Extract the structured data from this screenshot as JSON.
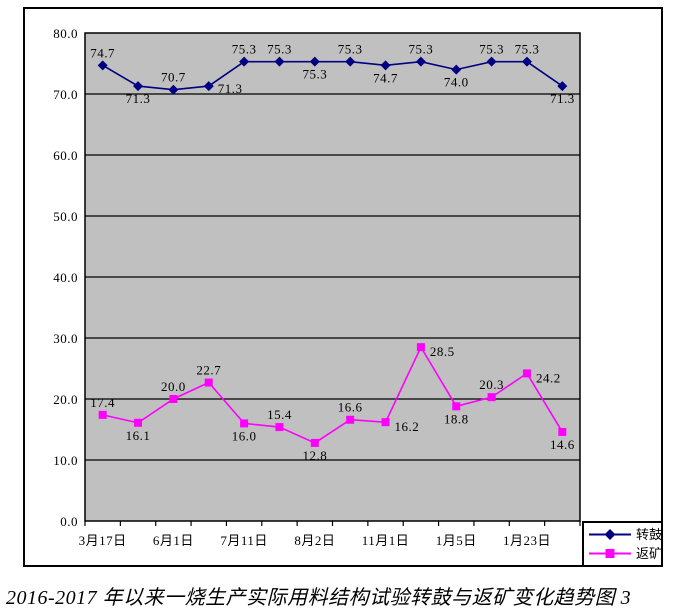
{
  "chart_data": {
    "type": "line",
    "title": "2016-2017 年以来一烧生产实际用料结构试验转鼓与返矿变化趋势图 3",
    "plot_bg_color": "#C0C0C0",
    "grid": true,
    "legend_position": "bottom-right",
    "ylim": [
      0,
      80
    ],
    "y_tick_step": 10,
    "y_tick_labels": [
      "0.0",
      "10.0",
      "20.0",
      "30.0",
      "40.0",
      "50.0",
      "60.0",
      "70.0",
      "80.0"
    ],
    "x_tick_labels": [
      "3月17日",
      "6月1日",
      "7月11日",
      "8月2日",
      "11月1日",
      "1月5日",
      "1月23日"
    ],
    "x_tick_label_indices": [
      0,
      2,
      4,
      6,
      8,
      10,
      12
    ],
    "series": [
      {
        "name": "转鼓",
        "color": "#000080",
        "marker": "diamond",
        "values": [
          74.7,
          71.3,
          70.7,
          71.3,
          75.3,
          75.3,
          75.3,
          75.3,
          74.7,
          75.3,
          74.0,
          75.3,
          75.3,
          71.3
        ],
        "label_placement": [
          "above",
          "below",
          "above",
          "below-right",
          "above",
          "above",
          "below",
          "above",
          "below",
          "above",
          "below",
          "above",
          "above",
          "below"
        ]
      },
      {
        "name": "返矿",
        "color": "#FF00FF",
        "marker": "square",
        "values": [
          17.4,
          16.1,
          20.0,
          22.7,
          16.0,
          15.4,
          12.8,
          16.6,
          16.2,
          28.5,
          18.8,
          20.3,
          24.2,
          14.6
        ],
        "label_placement": [
          "above",
          "below",
          "above",
          "above",
          "below",
          "above",
          "below",
          "above",
          "right",
          "right",
          "below",
          "above",
          "right",
          "below"
        ]
      }
    ]
  }
}
